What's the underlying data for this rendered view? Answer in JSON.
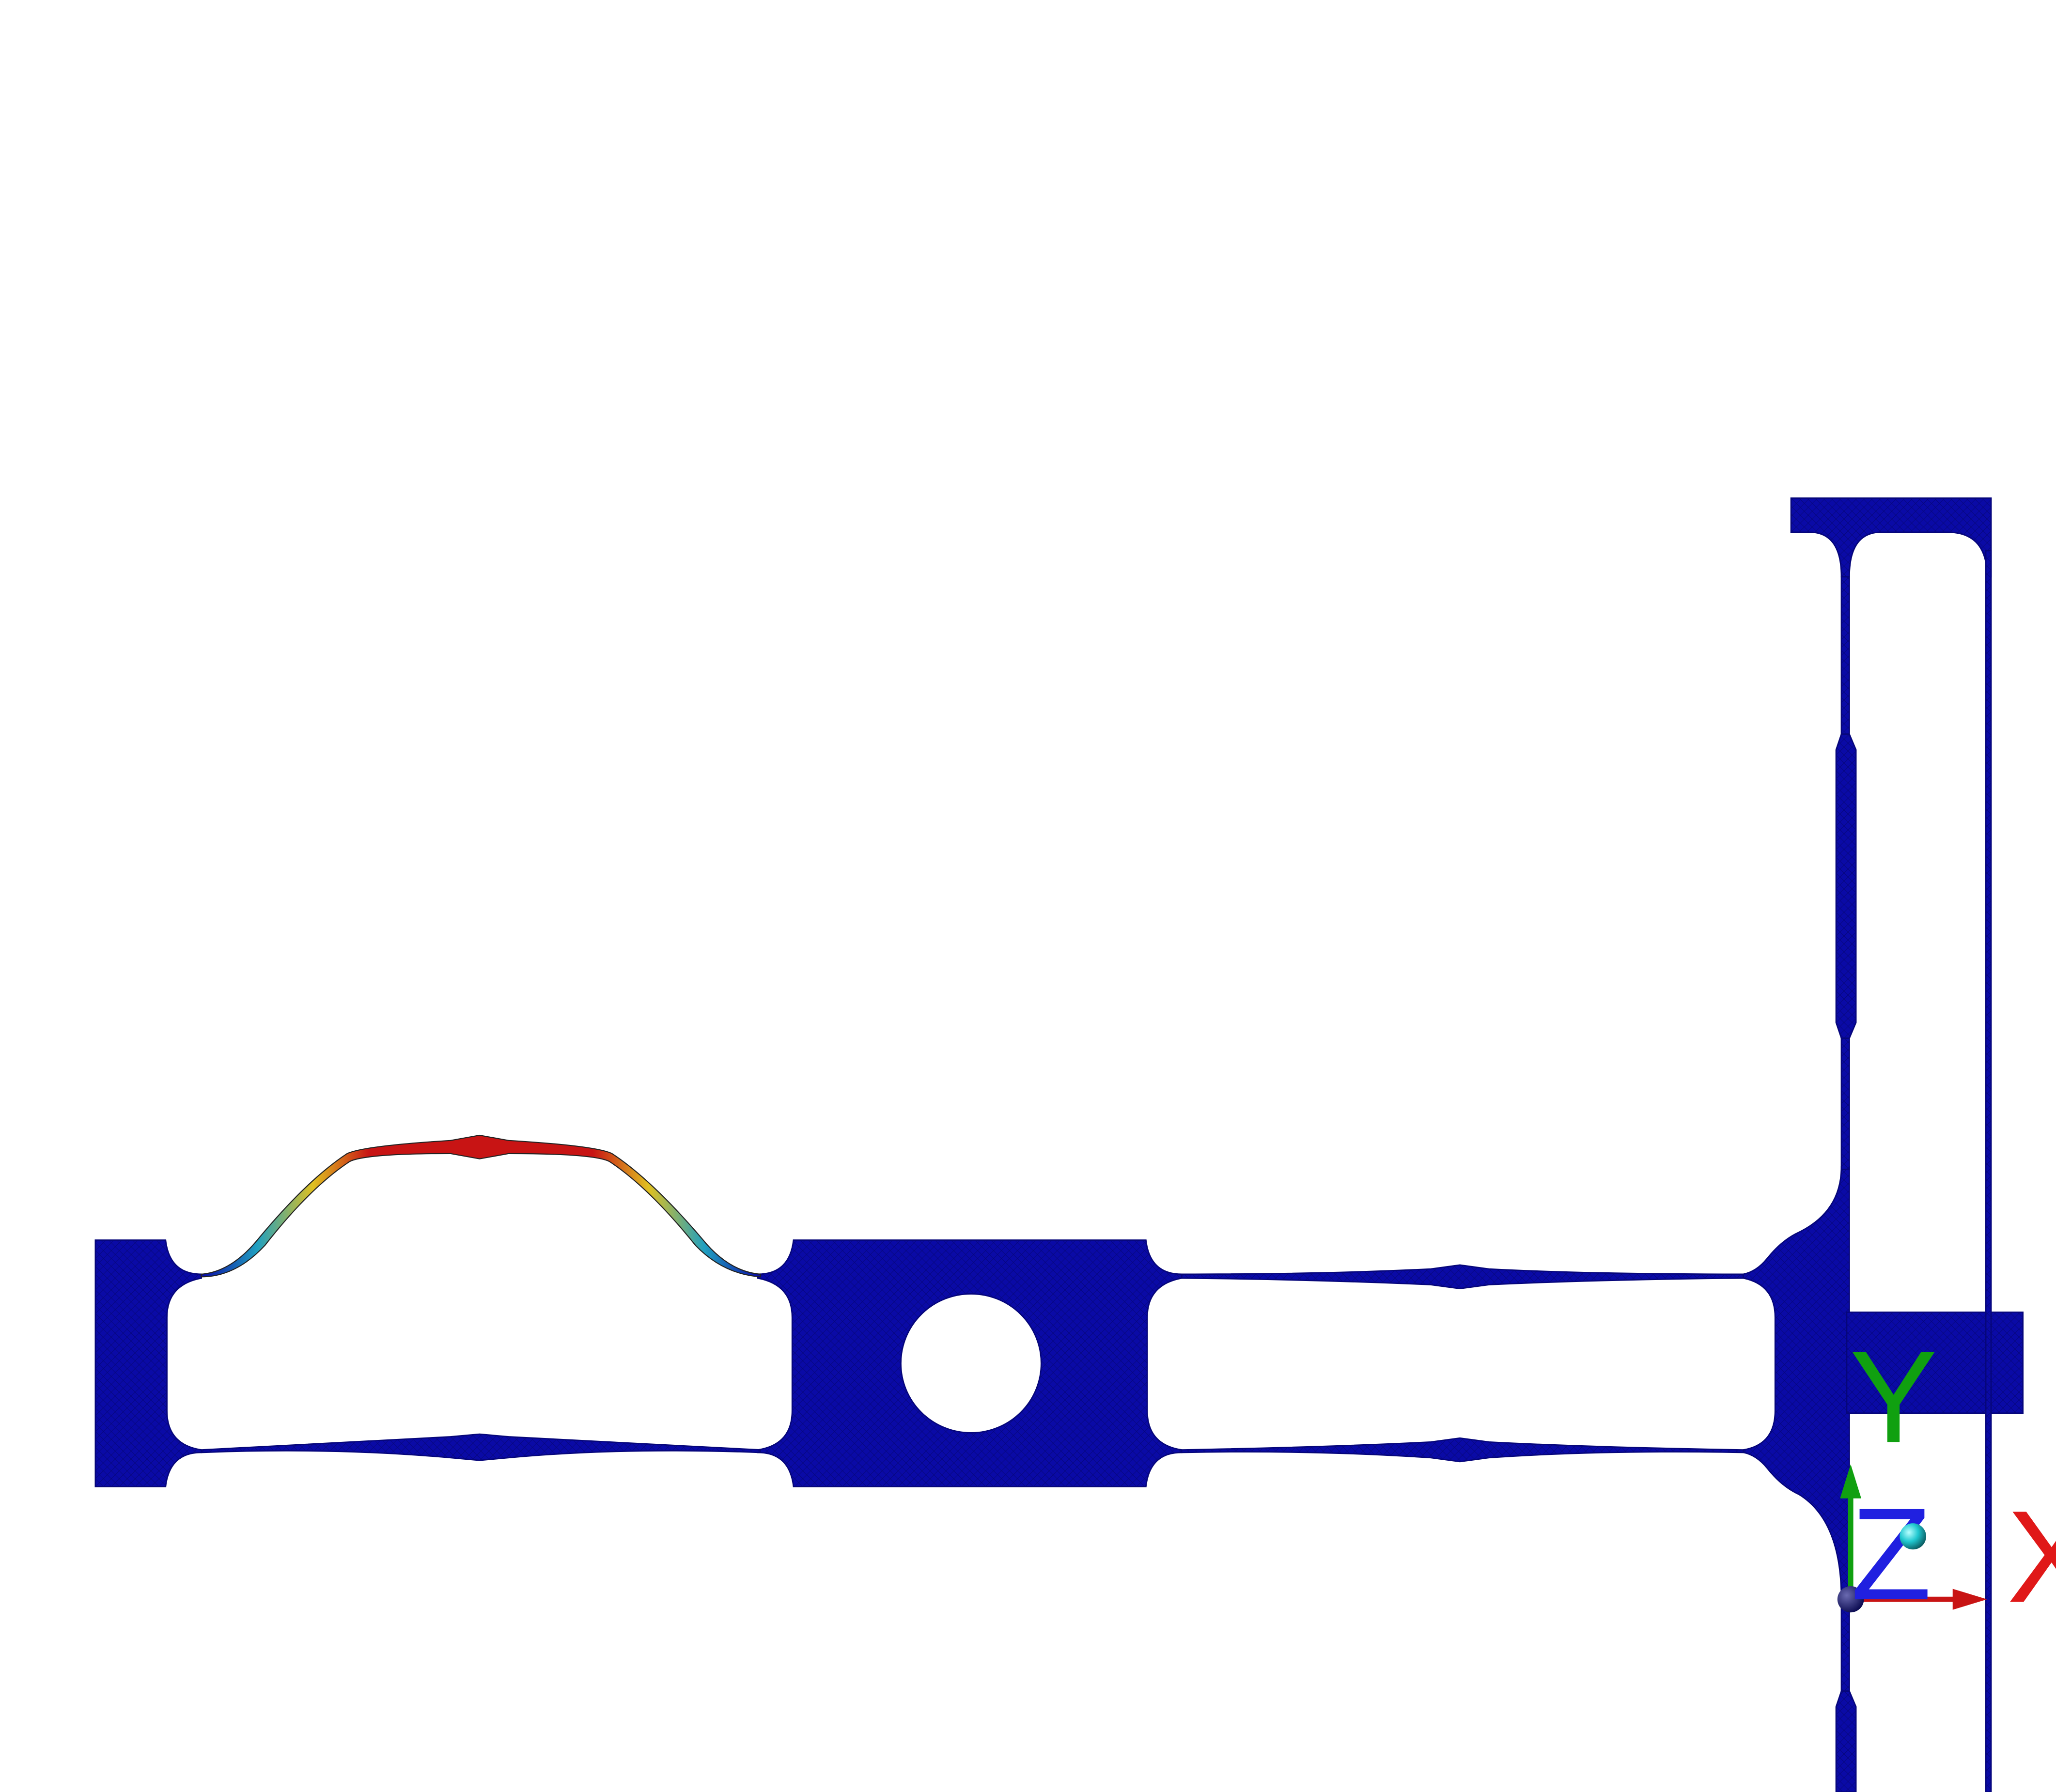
{
  "colors": {
    "background": "#ffffff",
    "body": "#0a0aa6",
    "body_dark": "#06067a",
    "stress_high": "#c81414",
    "stress_mid": "#e0c020",
    "stress_low": "#20a0c0",
    "axis_x": "#e01818",
    "axis_y": "#10a010",
    "axis_z": "#2020e0",
    "origin": "#0a0a50",
    "point": "#20c8d0"
  },
  "icons": {
    "triad": "xyz-axis-triad-icon",
    "origin": "origin-sphere-icon",
    "point": "cyan-sphere-icon"
  },
  "axes": {
    "x_label": "X",
    "y_label": "Y",
    "z_label": "Z"
  }
}
